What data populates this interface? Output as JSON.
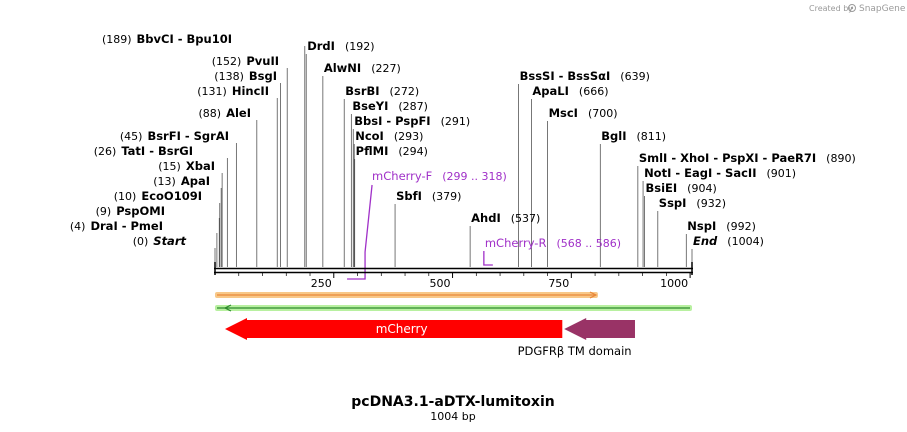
{
  "header": {
    "credit_text": "Created by",
    "brand_text": "SnapGene"
  },
  "plasmid": {
    "name": "pcDNA3.1-aDTX-lumitoxin",
    "length_label": "1004 bp"
  },
  "sequence": {
    "length_bp": 1004,
    "scale_ticks": [
      250,
      500,
      750,
      1000
    ],
    "tick_labels": [
      "250",
      "500",
      "750",
      "1000"
    ]
  },
  "sites": [
    {
      "name": "Start",
      "pos": 0,
      "pos_label": "(0)",
      "italic": true
    },
    {
      "name": "DraI  -  PmeI",
      "pos": 4,
      "pos_label": "(4)"
    },
    {
      "name": "PspOMI",
      "pos": 9,
      "pos_label": "(9)"
    },
    {
      "name": "EcoO109I",
      "pos": 10,
      "pos_label": "(10)"
    },
    {
      "name": "ApaI",
      "pos": 13,
      "pos_label": "(13)"
    },
    {
      "name": "XbaI",
      "pos": 15,
      "pos_label": "(15)"
    },
    {
      "name": "TatI  -  BsrGI",
      "pos": 26,
      "pos_label": "(26)"
    },
    {
      "name": "BsrFI  -  SgrAI",
      "pos": 45,
      "pos_label": "(45)"
    },
    {
      "name": "AleI",
      "pos": 88,
      "pos_label": "(88)"
    },
    {
      "name": "HincII",
      "pos": 131,
      "pos_label": "(131)"
    },
    {
      "name": "BsgI",
      "pos": 138,
      "pos_label": "(138)"
    },
    {
      "name": "PvuII",
      "pos": 152,
      "pos_label": "(152)"
    },
    {
      "name": "BbvCI  -  Bpu10I",
      "pos": 189,
      "pos_label": "(189)"
    },
    {
      "name": "DrdI",
      "pos": 192,
      "pos_label": "(192)"
    },
    {
      "name": "AlwNI",
      "pos": 227,
      "pos_label": "(227)"
    },
    {
      "name": "BsrBI",
      "pos": 272,
      "pos_label": "(272)"
    },
    {
      "name": "BseYI",
      "pos": 287,
      "pos_label": "(287)"
    },
    {
      "name": "BbsI  -  PspFI",
      "pos": 291,
      "pos_label": "(291)"
    },
    {
      "name": "NcoI",
      "pos": 293,
      "pos_label": "(293)"
    },
    {
      "name": "PflMI",
      "pos": 294,
      "pos_label": "(294)"
    },
    {
      "name": "SbfI",
      "pos": 379,
      "pos_label": "(379)"
    },
    {
      "name": "AhdI",
      "pos": 537,
      "pos_label": "(537)"
    },
    {
      "name": "BssSI  -  BssSαI",
      "pos": 639,
      "pos_label": "(639)"
    },
    {
      "name": "ApaLI",
      "pos": 666,
      "pos_label": "(666)"
    },
    {
      "name": "MscI",
      "pos": 700,
      "pos_label": "(700)"
    },
    {
      "name": "BglI",
      "pos": 811,
      "pos_label": "(811)"
    },
    {
      "name": "SmlI  -  XhoI  -  PspXI  -  PaeR7I",
      "pos": 890,
      "pos_label": "(890)"
    },
    {
      "name": "NotI  -  EagI  -  SacII",
      "pos": 901,
      "pos_label": "(901)"
    },
    {
      "name": "BsiEI",
      "pos": 904,
      "pos_label": "(904)"
    },
    {
      "name": "SspI",
      "pos": 932,
      "pos_label": "(932)"
    },
    {
      "name": "NspI",
      "pos": 992,
      "pos_label": "(992)"
    },
    {
      "name": "End",
      "pos": 1004,
      "pos_label": "(1004)",
      "italic": true
    }
  ],
  "primers": [
    {
      "name": "mCherry-F",
      "start": 299,
      "end": 318,
      "range_label": "(299 .. 318)"
    },
    {
      "name": "mCherry-R",
      "start": 568,
      "end": 586,
      "range_label": "(568 .. 586)"
    }
  ],
  "features": [
    {
      "name": "mCherry",
      "start": 0,
      "end": 731,
      "direction": "reverse",
      "color": "#ff0000"
    },
    {
      "name": "PDGFRβ TM domain",
      "start": 735,
      "end": 884,
      "direction": "reverse",
      "color": "#993366"
    }
  ],
  "orfs": [
    {
      "start": 0,
      "end": 806,
      "direction": "forward",
      "color": "#e8873a",
      "fill": "#f8c888"
    },
    {
      "start": 0,
      "end": 1004,
      "direction": "reverse",
      "color": "#2d8a2d",
      "fill": "#b8f0a0"
    }
  ],
  "colors": {
    "primer": "#a030c8",
    "backbone": "#000000",
    "site_line": "#555555"
  }
}
